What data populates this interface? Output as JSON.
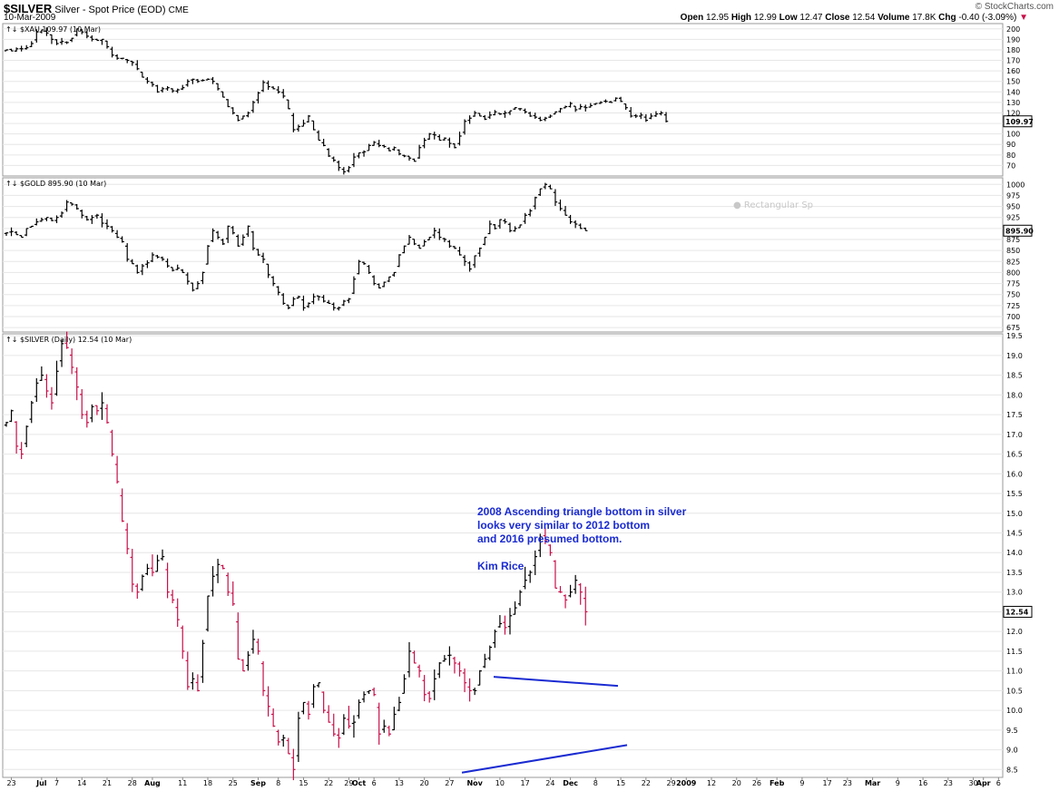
{
  "header": {
    "symbol": "$SILVER",
    "description": "Silver - Spot Price (EOD)",
    "exchange": "CME",
    "date": "10-Mar-2009",
    "copyright": "© StockCharts.com",
    "open_label": "Open",
    "open": "12.95",
    "high_label": "High",
    "high": "12.99",
    "low_label": "Low",
    "low": "12.47",
    "close_label": "Close",
    "close": "12.54",
    "volume_label": "Volume",
    "volume": "17.8K",
    "chg_label": "Chg",
    "chg": "-0.40 (-3.09%)",
    "chg_icon": "down-triangle-icon"
  },
  "annotation": {
    "lines": [
      "2008 Ascending triangle bottom in silver",
      "looks very similar to 2012 bottom",
      "and 2016 presumed bottom.",
      "",
      "Kim Rice"
    ],
    "color": "#1a2bd1"
  },
  "colors": {
    "up_bar": "#000000",
    "down_bar": "#c8104a",
    "trendline": "#1a2bd1",
    "grid": "#e6e6e6"
  },
  "chart_data": [
    {
      "type": "ohlc",
      "title": "$XAU 109.97 (10 Mar)",
      "watermark": "",
      "last_value": "109.97",
      "ylim": [
        60,
        205
      ],
      "yticks": [
        70,
        80,
        90,
        100,
        110,
        120,
        130,
        140,
        150,
        160,
        170,
        180,
        190,
        200
      ],
      "close_approx": [
        180,
        179,
        181,
        181,
        182,
        186,
        197,
        199,
        196,
        190,
        186,
        188,
        187,
        191,
        200,
        197,
        193,
        190,
        189,
        190,
        183,
        175,
        172,
        172,
        170,
        168,
        162,
        154,
        150,
        147,
        140,
        143,
        144,
        141,
        142,
        144,
        150,
        152,
        150,
        151,
        152,
        150,
        143,
        135,
        126,
        120,
        113,
        117,
        120,
        130,
        139,
        149,
        145,
        143,
        140,
        136,
        124,
        104,
        107,
        110,
        117,
        104,
        94,
        89,
        79,
        75,
        68,
        64,
        68,
        78,
        82,
        83,
        89,
        92,
        89,
        88,
        84,
        87,
        81,
        79,
        77,
        74,
        87,
        94,
        100,
        99,
        94,
        96,
        91,
        87,
        98,
        112,
        115,
        120,
        117,
        114,
        118,
        121,
        119,
        120,
        122,
        125,
        124,
        121,
        117,
        116,
        113,
        115,
        117,
        121,
        124,
        126,
        129,
        123,
        126,
        125,
        127,
        129,
        130,
        131,
        130,
        134,
        131,
        125,
        117,
        117,
        118,
        113,
        117,
        119,
        120,
        112
      ]
    },
    {
      "type": "ohlc",
      "title": "$GOLD 895.90 (10 Mar)",
      "watermark": "Rectangular Sp",
      "last_value": "895.90",
      "ylim": [
        665,
        1015
      ],
      "yticks": [
        675,
        700,
        725,
        750,
        775,
        800,
        825,
        850,
        875,
        900,
        925,
        950,
        975,
        1000
      ],
      "close_approx": [
        890,
        893,
        886,
        880,
        900,
        905,
        915,
        920,
        925,
        918,
        925,
        935,
        960,
        955,
        945,
        930,
        920,
        925,
        930,
        912,
        905,
        895,
        880,
        870,
        830,
        820,
        800,
        815,
        822,
        840,
        835,
        830,
        815,
        805,
        810,
        800,
        780,
        760,
        775,
        800,
        860,
        895,
        880,
        865,
        905,
        890,
        860,
        880,
        905,
        855,
        840,
        830,
        795,
        775,
        755,
        730,
        720,
        740,
        745,
        720,
        730,
        745,
        745,
        735,
        730,
        720,
        720,
        735,
        740,
        785,
        825,
        820,
        800,
        775,
        765,
        778,
        790,
        800,
        840,
        860,
        880,
        865,
        855,
        870,
        880,
        895,
        880,
        875,
        860,
        855,
        840,
        825,
        808,
        838,
        855,
        880,
        910,
        900,
        920,
        915,
        895,
        900,
        908,
        930,
        940,
        970,
        990,
        1000,
        990,
        960,
        945,
        930,
        915,
        910,
        900,
        895
      ]
    },
    {
      "type": "ohlc",
      "title": "$SILVER (Daily) 12.54 (10 Mar)",
      "last_value": "12.54",
      "ylim": [
        8.3,
        19.55
      ],
      "yticks": [
        8.5,
        9.0,
        9.5,
        10.0,
        10.5,
        11.0,
        11.5,
        12.0,
        12.5,
        13.0,
        13.5,
        14.0,
        14.5,
        15.0,
        15.5,
        16.0,
        16.5,
        17.0,
        17.5,
        18.0,
        18.5,
        19.0,
        19.5
      ],
      "close_approx": [
        17.3,
        17.6,
        16.7,
        16.5,
        17.2,
        17.8,
        18.3,
        18.5,
        18.1,
        17.8,
        18.6,
        19.3,
        19.2,
        18.7,
        18.2,
        17.5,
        17.3,
        17.7,
        17.6,
        17.8,
        17.3,
        16.5,
        15.8,
        14.8,
        14.1,
        13.2,
        13.0,
        13.4,
        13.6,
        13.5,
        13.8,
        13.9,
        13.0,
        12.8,
        12.3,
        11.5,
        10.6,
        10.8,
        10.5,
        11.7,
        12.9,
        13.4,
        13.7,
        13.6,
        13.0,
        12.7,
        11.3,
        11.0,
        11.4,
        11.8,
        11.5,
        10.5,
        10.1,
        9.6,
        9.2,
        9.3,
        8.9,
        8.5,
        9.8,
        10.2,
        9.9,
        10.6,
        10.7,
        10.0,
        9.7,
        9.4,
        9.3,
        9.8,
        9.6,
        9.7,
        10.2,
        10.4,
        10.5,
        10.4,
        9.4,
        9.6,
        9.4,
        9.9,
        10.2,
        10.8,
        11.5,
        11.2,
        11.0,
        10.4,
        10.3,
        10.8,
        11.2,
        11.3,
        11.4,
        11.2,
        11.0,
        10.7,
        10.5,
        10.5,
        11.0,
        11.3,
        11.6,
        12.0,
        12.2,
        12.1,
        12.4,
        12.6,
        13.0,
        13.3,
        13.5,
        13.9,
        14.4,
        14.3,
        14.0,
        13.1,
        13.0,
        12.8,
        13.0,
        13.3,
        13.0,
        12.5
      ]
    }
  ],
  "x_axis": {
    "labels": [
      {
        "t": "23",
        "m": false,
        "d": 1
      },
      {
        "t": "Jul",
        "m": true,
        "d": 7
      },
      {
        "t": "7",
        "m": false,
        "d": 10
      },
      {
        "t": "14",
        "m": false,
        "d": 15
      },
      {
        "t": "21",
        "m": false,
        "d": 20
      },
      {
        "t": "28",
        "m": false,
        "d": 25
      },
      {
        "t": "Aug",
        "m": true,
        "d": 29
      },
      {
        "t": "11",
        "m": false,
        "d": 35
      },
      {
        "t": "18",
        "m": false,
        "d": 40
      },
      {
        "t": "25",
        "m": false,
        "d": 45
      },
      {
        "t": "Sep",
        "m": true,
        "d": 50
      },
      {
        "t": "8",
        "m": false,
        "d": 54
      },
      {
        "t": "15",
        "m": false,
        "d": 59
      },
      {
        "t": "22",
        "m": false,
        "d": 64
      },
      {
        "t": "29",
        "m": false,
        "d": 68
      },
      {
        "t": "Oct",
        "m": true,
        "d": 70
      },
      {
        "t": "6",
        "m": false,
        "d": 73
      },
      {
        "t": "13",
        "m": false,
        "d": 78
      },
      {
        "t": "20",
        "m": false,
        "d": 83
      },
      {
        "t": "27",
        "m": false,
        "d": 88
      },
      {
        "t": "Nov",
        "m": true,
        "d": 93
      },
      {
        "t": "10",
        "m": false,
        "d": 98
      },
      {
        "t": "17",
        "m": false,
        "d": 103
      },
      {
        "t": "24",
        "m": false,
        "d": 108
      },
      {
        "t": "Dec",
        "m": true,
        "d": 112
      },
      {
        "t": "8",
        "m": false,
        "d": 117
      },
      {
        "t": "15",
        "m": false,
        "d": 122
      },
      {
        "t": "22",
        "m": false,
        "d": 127
      },
      {
        "t": "29",
        "m": false,
        "d": 132
      },
      {
        "t": "2009",
        "m": true,
        "d": 135
      },
      {
        "t": "12",
        "m": false,
        "d": 140
      },
      {
        "t": "20",
        "m": false,
        "d": 145
      },
      {
        "t": "26",
        "m": false,
        "d": 149
      },
      {
        "t": "Feb",
        "m": true,
        "d": 153
      },
      {
        "t": "9",
        "m": false,
        "d": 158
      },
      {
        "t": "17",
        "m": false,
        "d": 163
      },
      {
        "t": "23",
        "m": false,
        "d": 167
      },
      {
        "t": "Mar",
        "m": true,
        "d": 172
      },
      {
        "t": "9",
        "m": false,
        "d": 177
      },
      {
        "t": "16",
        "m": false,
        "d": 182
      },
      {
        "t": "23",
        "m": false,
        "d": 187
      },
      {
        "t": "30",
        "m": false,
        "d": 192
      },
      {
        "t": "Apr",
        "m": true,
        "d": 194
      },
      {
        "t": "6",
        "m": false,
        "d": 197
      }
    ]
  }
}
